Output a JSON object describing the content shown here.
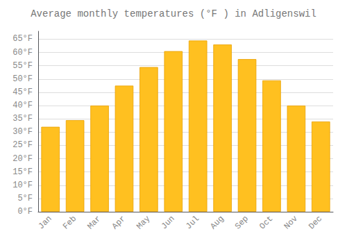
{
  "chart_data": {
    "type": "bar",
    "title": "Average monthly temperatures (°F ) in Adligenswil",
    "categories": [
      "Jan",
      "Feb",
      "Mar",
      "Apr",
      "May",
      "Jun",
      "Jul",
      "Aug",
      "Sep",
      "Oct",
      "Nov",
      "Dec"
    ],
    "values": [
      32,
      34.5,
      40,
      47.5,
      54.5,
      60.5,
      64.5,
      63,
      57.5,
      49.5,
      40,
      34
    ],
    "color": "#FFC020",
    "ylim": [
      0,
      68
    ],
    "yticks": [
      {
        "value": 0,
        "label": "0°F"
      },
      {
        "value": 5,
        "label": "5°F"
      },
      {
        "value": 10,
        "label": "10°F"
      },
      {
        "value": 15,
        "label": "15°F"
      },
      {
        "value": 20,
        "label": "20°F"
      },
      {
        "value": 25,
        "label": "25°F"
      },
      {
        "value": 30,
        "label": "30°F"
      },
      {
        "value": 35,
        "label": "35°F"
      },
      {
        "value": 40,
        "label": "40°F"
      },
      {
        "value": 45,
        "label": "45°F"
      },
      {
        "value": 50,
        "label": "50°F"
      },
      {
        "value": 55,
        "label": "55°F"
      },
      {
        "value": 60,
        "label": "60°F"
      },
      {
        "value": 65,
        "label": "65°F"
      }
    ],
    "grid": true
  }
}
